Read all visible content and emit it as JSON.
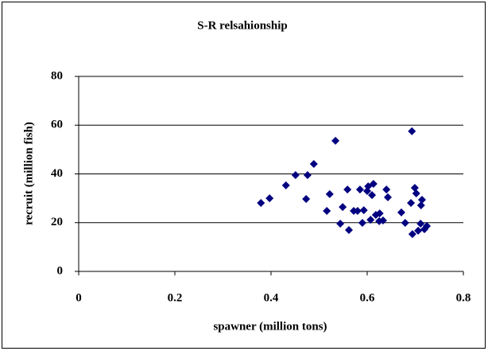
{
  "chart_data": {
    "type": "scatter",
    "title": "S-R relsahionship",
    "x_label": "spawner (million tons)",
    "y_label": "recruit (million fish)",
    "color": "#000080",
    "grid": true,
    "xlim": [
      0,
      0.8
    ],
    "xticks": [
      0,
      {
        "value": 0.2,
        "label": "0.2"
      },
      {
        "value": 0.4,
        "label": "0.4"
      },
      {
        "value": 0.6,
        "label": "0.6"
      },
      {
        "value": 0.8,
        "label": "0.8"
      }
    ],
    "ylim": [
      0,
      80
    ],
    "yticks": [
      0,
      20,
      40,
      60,
      80
    ],
    "x": [
      0.379,
      0.397,
      0.431,
      0.451,
      0.473,
      0.476,
      0.489,
      0.522,
      0.516,
      0.534,
      0.544,
      0.549,
      0.559,
      0.562,
      0.572,
      0.58,
      0.585,
      0.59,
      0.593,
      0.6,
      0.602,
      0.607,
      0.61,
      0.613,
      0.618,
      0.625,
      0.626,
      0.633,
      0.64,
      0.643,
      0.671,
      0.679,
      0.691,
      0.693,
      0.694,
      0.699,
      0.702,
      0.706,
      0.711,
      0.712,
      0.714,
      0.719,
      0.724
    ],
    "values": [
      28.1,
      30.0,
      35.3,
      39.5,
      29.7,
      39.5,
      44.1,
      31.7,
      24.8,
      53.6,
      19.6,
      26.4,
      33.6,
      17.0,
      24.8,
      24.8,
      33.6,
      19.9,
      25.1,
      33.0,
      34.9,
      21.2,
      31.3,
      35.9,
      23.2,
      20.6,
      23.8,
      20.9,
      33.6,
      30.4,
      24.2,
      19.9,
      28.1,
      57.5,
      15.3,
      34.3,
      32.0,
      16.7,
      19.6,
      27.1,
      29.4,
      17.3,
      18.6
    ]
  }
}
